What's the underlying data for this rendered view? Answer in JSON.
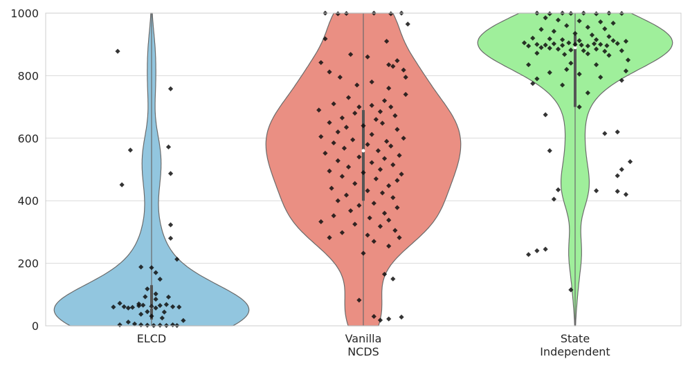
{
  "chart_data": {
    "type": "violin",
    "title": "",
    "xlabel": "",
    "ylabel": "",
    "ylim": [
      0,
      1000
    ],
    "yticks": [
      0,
      200,
      400,
      600,
      800,
      1000
    ],
    "grid": true,
    "categories": [
      {
        "label_lines": [
          "ELCD"
        ],
        "color": "#92c6df"
      },
      {
        "label_lines": [
          "Vanilla",
          "NCDS"
        ],
        "color": "#ea8f83"
      },
      {
        "label_lines": [
          "State",
          "Independent"
        ],
        "color": "#9fef9b"
      }
    ],
    "series": [
      {
        "points": [
          [
            -0.16,
            878
          ],
          [
            0.09,
            758
          ],
          [
            0.08,
            572
          ],
          [
            -0.1,
            562
          ],
          [
            0.09,
            487
          ],
          [
            -0.14,
            451
          ],
          [
            0.09,
            323
          ],
          [
            0.09,
            280
          ],
          [
            0.12,
            213
          ],
          [
            -0.05,
            188
          ],
          [
            0.0,
            186
          ],
          [
            0.02,
            170
          ],
          [
            0.04,
            149
          ],
          [
            -0.02,
            118
          ],
          [
            0.02,
            102
          ],
          [
            -0.03,
            93
          ],
          [
            0.08,
            92
          ],
          [
            0.02,
            85
          ],
          [
            -0.06,
            70
          ],
          [
            -0.18,
            60
          ],
          [
            -0.13,
            61
          ],
          [
            -0.11,
            57
          ],
          [
            -0.09,
            59
          ],
          [
            -0.06,
            64
          ],
          [
            -0.04,
            66
          ],
          [
            0.0,
            62
          ],
          [
            0.02,
            57
          ],
          [
            0.04,
            65
          ],
          [
            0.07,
            68
          ],
          [
            0.1,
            61
          ],
          [
            0.13,
            60
          ],
          [
            -0.15,
            72
          ],
          [
            -0.02,
            45
          ],
          [
            0.06,
            44
          ],
          [
            -0.05,
            37
          ],
          [
            0.0,
            31
          ],
          [
            0.05,
            25
          ],
          [
            0.15,
            17
          ],
          [
            -0.11,
            12
          ],
          [
            -0.08,
            6
          ],
          [
            -0.05,
            3
          ],
          [
            -0.02,
            2
          ],
          [
            0.01,
            1
          ],
          [
            0.04,
            2
          ],
          [
            0.07,
            1
          ],
          [
            0.1,
            3
          ],
          [
            -0.15,
            3
          ],
          [
            0.12,
            1
          ]
        ],
        "median": 60,
        "q1": 20,
        "q3": 130
      },
      {
        "points": [
          [
            -0.18,
            1000
          ],
          [
            -0.12,
            998
          ],
          [
            -0.08,
            999
          ],
          [
            0.05,
            1000
          ],
          [
            0.13,
            998
          ],
          [
            0.18,
            1000
          ],
          [
            0.21,
            965
          ],
          [
            -0.18,
            918
          ],
          [
            0.11,
            910
          ],
          [
            -0.06,
            868
          ],
          [
            0.02,
            860
          ],
          [
            0.16,
            848
          ],
          [
            -0.2,
            842
          ],
          [
            0.12,
            835
          ],
          [
            0.14,
            830
          ],
          [
            0.19,
            818
          ],
          [
            -0.16,
            812
          ],
          [
            -0.11,
            795
          ],
          [
            0.2,
            795
          ],
          [
            0.04,
            780
          ],
          [
            -0.03,
            770
          ],
          [
            0.12,
            760
          ],
          [
            0.2,
            740
          ],
          [
            -0.07,
            730
          ],
          [
            0.1,
            720
          ],
          [
            -0.14,
            710
          ],
          [
            0.04,
            705
          ],
          [
            -0.02,
            700
          ],
          [
            0.13,
            700
          ],
          [
            -0.21,
            690
          ],
          [
            0.08,
            685
          ],
          [
            -0.04,
            680
          ],
          [
            0.15,
            672
          ],
          [
            -0.1,
            665
          ],
          [
            0.06,
            660
          ],
          [
            -0.16,
            650
          ],
          [
            0.09,
            648
          ],
          [
            0.0,
            640
          ],
          [
            -0.08,
            635
          ],
          [
            0.16,
            628
          ],
          [
            -0.12,
            620
          ],
          [
            0.04,
            612
          ],
          [
            -0.2,
            605
          ],
          [
            0.19,
            600
          ],
          [
            -0.05,
            595
          ],
          [
            0.11,
            590
          ],
          [
            -0.14,
            585
          ],
          [
            0.02,
            580
          ],
          [
            0.13,
            575
          ],
          [
            -0.09,
            568
          ],
          [
            0.07,
            560
          ],
          [
            -0.18,
            552
          ],
          [
            0.17,
            545
          ],
          [
            -0.02,
            540
          ],
          [
            0.1,
            535
          ],
          [
            -0.12,
            528
          ],
          [
            0.04,
            522
          ],
          [
            0.14,
            515
          ],
          [
            -0.07,
            508
          ],
          [
            0.08,
            500
          ],
          [
            -0.16,
            495
          ],
          [
            0.0,
            490
          ],
          [
            0.18,
            485
          ],
          [
            -0.1,
            478
          ],
          [
            0.06,
            470
          ],
          [
            0.16,
            465
          ],
          [
            -0.04,
            455
          ],
          [
            0.12,
            448
          ],
          [
            -0.15,
            440
          ],
          [
            0.02,
            432
          ],
          [
            0.09,
            425
          ],
          [
            -0.08,
            418
          ],
          [
            0.14,
            410
          ],
          [
            -0.12,
            400
          ],
          [
            0.05,
            392
          ],
          [
            -0.02,
            385
          ],
          [
            0.16,
            378
          ],
          [
            -0.06,
            368
          ],
          [
            0.1,
            360
          ],
          [
            -0.14,
            352
          ],
          [
            0.03,
            345
          ],
          [
            0.12,
            338
          ],
          [
            -0.2,
            333
          ],
          [
            -0.04,
            325
          ],
          [
            0.08,
            318
          ],
          [
            0.15,
            305
          ],
          [
            -0.1,
            298
          ],
          [
            0.02,
            290
          ],
          [
            0.17,
            282
          ],
          [
            -0.16,
            282
          ],
          [
            0.05,
            270
          ],
          [
            0.12,
            255
          ],
          [
            0.0,
            232
          ],
          [
            0.1,
            165
          ],
          [
            0.14,
            150
          ],
          [
            -0.02,
            82
          ],
          [
            0.05,
            30
          ],
          [
            0.12,
            22
          ],
          [
            0.18,
            28
          ],
          [
            0.08,
            18
          ]
        ],
        "median": 560,
        "q1": 400,
        "q3": 690
      },
      {
        "points": [
          [
            -0.18,
            1000
          ],
          [
            -0.12,
            998
          ],
          [
            -0.06,
            1000
          ],
          [
            -0.02,
            999
          ],
          [
            0.04,
            1000
          ],
          [
            0.1,
            998
          ],
          [
            0.16,
            1000
          ],
          [
            0.22,
            999
          ],
          [
            -0.14,
            985
          ],
          [
            -0.08,
            978
          ],
          [
            0.02,
            975
          ],
          [
            0.12,
            972
          ],
          [
            0.18,
            968
          ],
          [
            -0.04,
            960
          ],
          [
            0.06,
            955
          ],
          [
            0.14,
            950
          ],
          [
            -0.16,
            948
          ],
          [
            -0.1,
            942
          ],
          [
            0.0,
            935
          ],
          [
            0.08,
            930
          ],
          [
            0.16,
            925
          ],
          [
            -0.2,
            920
          ],
          [
            -0.12,
            918
          ],
          [
            -0.06,
            915
          ],
          [
            0.02,
            912
          ],
          [
            0.1,
            915
          ],
          [
            0.18,
            912
          ],
          [
            0.24,
            910
          ],
          [
            -0.24,
            905
          ],
          [
            -0.18,
            900
          ],
          [
            -0.14,
            898
          ],
          [
            -0.1,
            902
          ],
          [
            -0.06,
            897
          ],
          [
            -0.03,
            905
          ],
          [
            0.0,
            900
          ],
          [
            0.03,
            898
          ],
          [
            0.06,
            895
          ],
          [
            0.09,
            902
          ],
          [
            0.12,
            900
          ],
          [
            0.15,
            896
          ],
          [
            0.2,
            903
          ],
          [
            -0.22,
            895
          ],
          [
            -0.16,
            890
          ],
          [
            -0.12,
            888
          ],
          [
            -0.08,
            885
          ],
          [
            -0.02,
            882
          ],
          [
            0.04,
            880
          ],
          [
            0.1,
            885
          ],
          [
            0.14,
            878
          ],
          [
            0.22,
            880
          ],
          [
            -0.18,
            872
          ],
          [
            -0.05,
            868
          ],
          [
            0.06,
            870
          ],
          [
            0.16,
            865
          ],
          [
            0.25,
            850
          ],
          [
            -0.22,
            835
          ],
          [
            -0.02,
            840
          ],
          [
            0.1,
            835
          ],
          [
            0.24,
            815
          ],
          [
            -0.12,
            810
          ],
          [
            -0.04,
            820
          ],
          [
            0.02,
            805
          ],
          [
            -0.18,
            790
          ],
          [
            -0.2,
            775
          ],
          [
            0.12,
            795
          ],
          [
            0.22,
            785
          ],
          [
            -0.06,
            770
          ],
          [
            0.06,
            745
          ],
          [
            0.02,
            700
          ],
          [
            -0.14,
            675
          ],
          [
            0.2,
            620
          ],
          [
            0.14,
            615
          ],
          [
            -0.12,
            560
          ],
          [
            0.26,
            525
          ],
          [
            0.22,
            500
          ],
          [
            0.2,
            480
          ],
          [
            -0.08,
            435
          ],
          [
            0.1,
            432
          ],
          [
            0.2,
            430
          ],
          [
            0.24,
            420
          ],
          [
            -0.1,
            405
          ],
          [
            -0.14,
            245
          ],
          [
            -0.18,
            240
          ],
          [
            -0.22,
            228
          ],
          [
            -0.02,
            115
          ]
        ],
        "median": 890,
        "q1": 700,
        "q3": 930
      }
    ]
  }
}
